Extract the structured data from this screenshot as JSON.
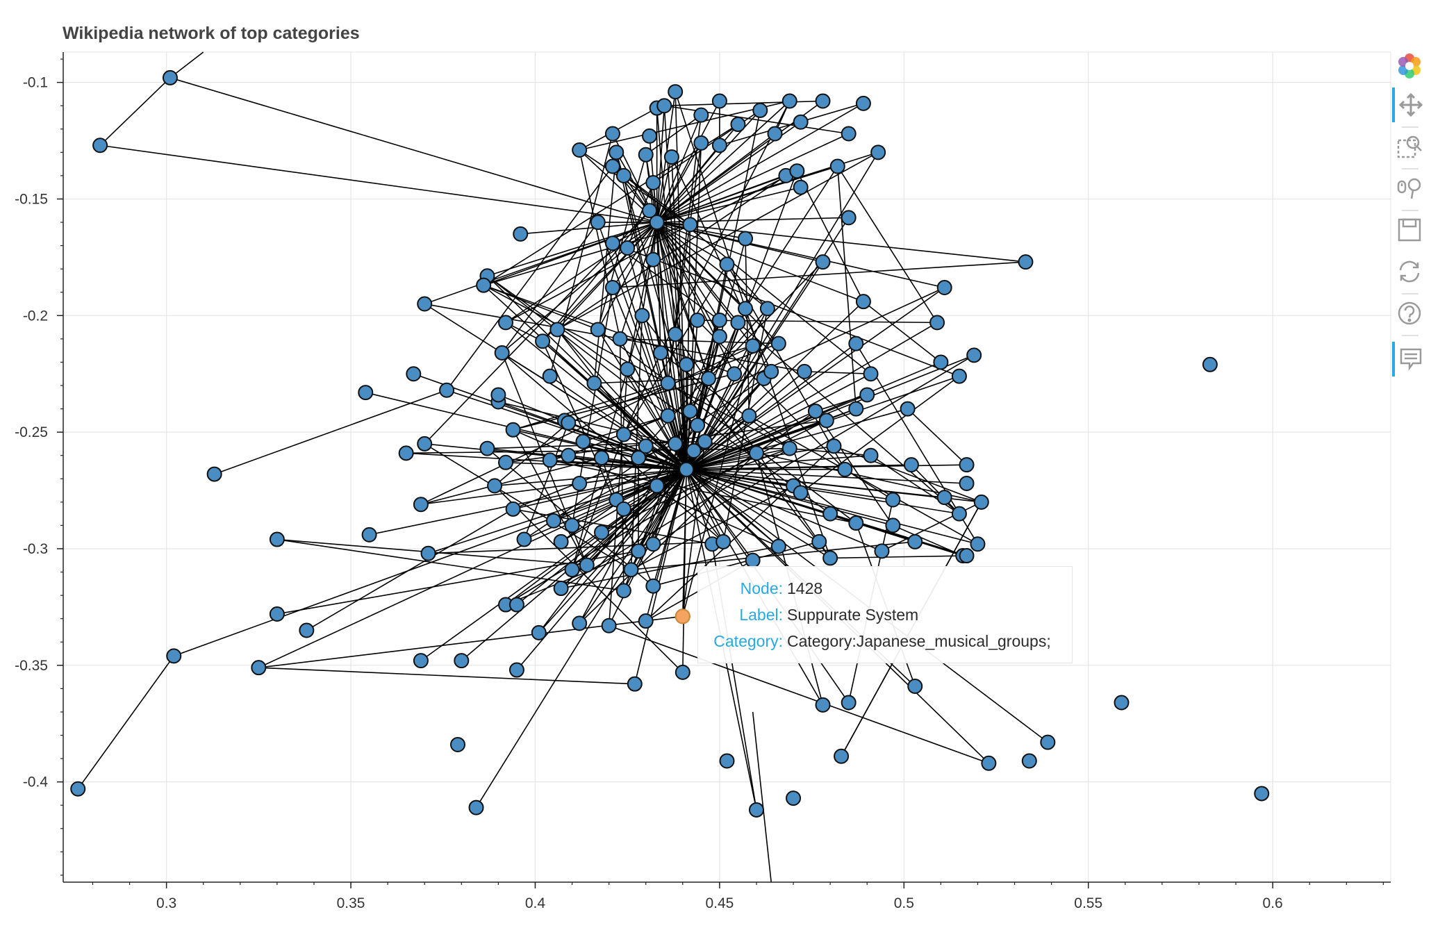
{
  "chart_data": {
    "type": "scatter",
    "title": "Wikipedia network of top categories",
    "xlim": [
      0.272,
      0.632
    ],
    "ylim": [
      -0.443,
      -0.087
    ],
    "x_ticks": [
      0.3,
      0.35,
      0.4,
      0.45,
      0.5,
      0.55,
      0.6
    ],
    "x_tick_labels": [
      "0.3",
      "0.35",
      "0.4",
      "0.45",
      "0.5",
      "0.55",
      "0.6"
    ],
    "y_ticks": [
      -0.1,
      -0.15,
      -0.2,
      -0.25,
      -0.3,
      -0.35,
      -0.4
    ],
    "y_tick_labels": [
      "-0.1",
      "-0.15",
      "-0.2",
      "-0.25",
      "-0.3",
      "-0.35",
      "-0.4"
    ],
    "grid": true,
    "node_color": "#4a8dc3",
    "highlight_color": "#f4a460",
    "edge_color": "#000000",
    "hubs": [
      [
        0.441,
        -0.266
      ],
      [
        0.433,
        -0.16
      ]
    ],
    "nodes": [
      [
        0.301,
        -0.098
      ],
      [
        0.282,
        -0.127
      ],
      [
        0.276,
        -0.403
      ],
      [
        0.302,
        -0.346
      ],
      [
        0.313,
        -0.268
      ],
      [
        0.33,
        -0.296
      ],
      [
        0.33,
        -0.328
      ],
      [
        0.338,
        -0.335
      ],
      [
        0.325,
        -0.351
      ],
      [
        0.354,
        -0.233
      ],
      [
        0.355,
        -0.294
      ],
      [
        0.369,
        -0.281
      ],
      [
        0.369,
        -0.348
      ],
      [
        0.371,
        -0.302
      ],
      [
        0.367,
        -0.225
      ],
      [
        0.365,
        -0.259
      ],
      [
        0.37,
        -0.255
      ],
      [
        0.37,
        -0.195
      ],
      [
        0.376,
        -0.232
      ],
      [
        0.38,
        -0.348
      ],
      [
        0.379,
        -0.384
      ],
      [
        0.384,
        -0.411
      ],
      [
        0.387,
        -0.183
      ],
      [
        0.386,
        -0.187
      ],
      [
        0.387,
        -0.257
      ],
      [
        0.389,
        -0.273
      ],
      [
        0.391,
        -0.216
      ],
      [
        0.392,
        -0.203
      ],
      [
        0.392,
        -0.263
      ],
      [
        0.392,
        -0.324
      ],
      [
        0.394,
        -0.249
      ],
      [
        0.394,
        -0.283
      ],
      [
        0.395,
        -0.324
      ],
      [
        0.395,
        -0.352
      ],
      [
        0.396,
        -0.165
      ],
      [
        0.397,
        -0.296
      ],
      [
        0.39,
        -0.237
      ],
      [
        0.39,
        -0.234
      ],
      [
        0.401,
        -0.336
      ],
      [
        0.402,
        -0.211
      ],
      [
        0.404,
        -0.226
      ],
      [
        0.404,
        -0.262
      ],
      [
        0.406,
        -0.206
      ],
      [
        0.405,
        -0.288
      ],
      [
        0.407,
        -0.297
      ],
      [
        0.407,
        -0.317
      ],
      [
        0.408,
        -0.245
      ],
      [
        0.409,
        -0.246
      ],
      [
        0.409,
        -0.26
      ],
      [
        0.41,
        -0.29
      ],
      [
        0.41,
        -0.309
      ],
      [
        0.412,
        -0.332
      ],
      [
        0.412,
        -0.272
      ],
      [
        0.412,
        -0.129
      ],
      [
        0.413,
        -0.254
      ],
      [
        0.414,
        -0.307
      ],
      [
        0.416,
        -0.229
      ],
      [
        0.417,
        -0.16
      ],
      [
        0.417,
        -0.206
      ],
      [
        0.418,
        -0.293
      ],
      [
        0.418,
        -0.261
      ],
      [
        0.42,
        -0.333
      ],
      [
        0.421,
        -0.136
      ],
      [
        0.421,
        -0.122
      ],
      [
        0.421,
        -0.169
      ],
      [
        0.421,
        -0.188
      ],
      [
        0.422,
        -0.279
      ],
      [
        0.422,
        -0.13
      ],
      [
        0.423,
        -0.21
      ],
      [
        0.424,
        -0.14
      ],
      [
        0.424,
        -0.251
      ],
      [
        0.424,
        -0.283
      ],
      [
        0.424,
        -0.318
      ],
      [
        0.425,
        -0.171
      ],
      [
        0.425,
        -0.223
      ],
      [
        0.426,
        -0.309
      ],
      [
        0.427,
        -0.358
      ],
      [
        0.428,
        -0.261
      ],
      [
        0.428,
        -0.301
      ],
      [
        0.429,
        -0.2
      ],
      [
        0.43,
        -0.131
      ],
      [
        0.43,
        -0.331
      ],
      [
        0.43,
        -0.256
      ],
      [
        0.431,
        -0.123
      ],
      [
        0.431,
        -0.155
      ],
      [
        0.432,
        -0.143
      ],
      [
        0.432,
        -0.176
      ],
      [
        0.432,
        -0.298
      ],
      [
        0.432,
        -0.316
      ],
      [
        0.433,
        -0.111
      ],
      [
        0.433,
        -0.273
      ],
      [
        0.434,
        -0.216
      ],
      [
        0.435,
        -0.11
      ],
      [
        0.436,
        -0.229
      ],
      [
        0.436,
        -0.243
      ],
      [
        0.437,
        -0.132
      ],
      [
        0.438,
        -0.104
      ],
      [
        0.438,
        -0.255
      ],
      [
        0.438,
        -0.208
      ],
      [
        0.44,
        -0.329
      ],
      [
        0.44,
        -0.353
      ],
      [
        0.441,
        -0.221
      ],
      [
        0.442,
        -0.161
      ],
      [
        0.442,
        -0.241
      ],
      [
        0.443,
        -0.258
      ],
      [
        0.444,
        -0.202
      ],
      [
        0.444,
        -0.247
      ],
      [
        0.445,
        -0.114
      ],
      [
        0.445,
        -0.126
      ],
      [
        0.446,
        -0.254
      ],
      [
        0.447,
        -0.227
      ],
      [
        0.448,
        -0.298
      ],
      [
        0.45,
        -0.202
      ],
      [
        0.45,
        -0.209
      ],
      [
        0.45,
        -0.108
      ],
      [
        0.45,
        -0.127
      ],
      [
        0.451,
        -0.297
      ],
      [
        0.452,
        -0.178
      ],
      [
        0.452,
        -0.391
      ],
      [
        0.454,
        -0.225
      ],
      [
        0.455,
        -0.118
      ],
      [
        0.455,
        -0.203
      ],
      [
        0.457,
        -0.167
      ],
      [
        0.457,
        -0.197
      ],
      [
        0.458,
        -0.243
      ],
      [
        0.459,
        -0.213
      ],
      [
        0.459,
        -0.305
      ],
      [
        0.46,
        -0.259
      ],
      [
        0.46,
        -0.412
      ],
      [
        0.461,
        -0.112
      ],
      [
        0.462,
        -0.227
      ],
      [
        0.463,
        -0.197
      ],
      [
        0.464,
        -0.224
      ],
      [
        0.465,
        -0.122
      ],
      [
        0.466,
        -0.212
      ],
      [
        0.466,
        -0.299
      ],
      [
        0.468,
        -0.14
      ],
      [
        0.469,
        -0.257
      ],
      [
        0.469,
        -0.108
      ],
      [
        0.47,
        -0.273
      ],
      [
        0.47,
        -0.407
      ],
      [
        0.471,
        -0.138
      ],
      [
        0.472,
        -0.117
      ],
      [
        0.472,
        -0.276
      ],
      [
        0.472,
        -0.145
      ],
      [
        0.473,
        -0.224
      ],
      [
        0.476,
        -0.241
      ],
      [
        0.477,
        -0.297
      ],
      [
        0.478,
        -0.367
      ],
      [
        0.478,
        -0.177
      ],
      [
        0.478,
        -0.108
      ],
      [
        0.479,
        -0.245
      ],
      [
        0.48,
        -0.285
      ],
      [
        0.48,
        -0.304
      ],
      [
        0.481,
        -0.256
      ],
      [
        0.482,
        -0.136
      ],
      [
        0.483,
        -0.389
      ],
      [
        0.484,
        -0.266
      ],
      [
        0.485,
        -0.122
      ],
      [
        0.485,
        -0.158
      ],
      [
        0.485,
        -0.366
      ],
      [
        0.487,
        -0.24
      ],
      [
        0.487,
        -0.289
      ],
      [
        0.487,
        -0.212
      ],
      [
        0.489,
        -0.109
      ],
      [
        0.489,
        -0.194
      ],
      [
        0.49,
        -0.234
      ],
      [
        0.491,
        -0.26
      ],
      [
        0.491,
        -0.225
      ],
      [
        0.493,
        -0.13
      ],
      [
        0.494,
        -0.301
      ],
      [
        0.497,
        -0.279
      ],
      [
        0.497,
        -0.29
      ],
      [
        0.501,
        -0.24
      ],
      [
        0.502,
        -0.264
      ],
      [
        0.503,
        -0.297
      ],
      [
        0.503,
        -0.359
      ],
      [
        0.509,
        -0.203
      ],
      [
        0.51,
        -0.22
      ],
      [
        0.511,
        -0.188
      ],
      [
        0.511,
        -0.278
      ],
      [
        0.515,
        -0.226
      ],
      [
        0.515,
        -0.285
      ],
      [
        0.516,
        -0.303
      ],
      [
        0.517,
        -0.303
      ],
      [
        0.517,
        -0.264
      ],
      [
        0.517,
        -0.272
      ],
      [
        0.519,
        -0.217
      ],
      [
        0.52,
        -0.298
      ],
      [
        0.521,
        -0.28
      ],
      [
        0.523,
        -0.392
      ],
      [
        0.533,
        -0.177
      ],
      [
        0.534,
        -0.391
      ],
      [
        0.539,
        -0.383
      ],
      [
        0.559,
        -0.366
      ],
      [
        0.583,
        -0.221
      ],
      [
        0.597,
        -0.405
      ]
    ],
    "highlight_node": [
      0.44,
      -0.329
    ],
    "tooltip": {
      "node_key": "Node:",
      "node_value": "1428",
      "label_key": "Label:",
      "label_value": "Suppurate System",
      "category_key": "Category:",
      "category_value": "Category:Japanese_musical_groups;"
    }
  },
  "toolbar": {
    "tools": [
      "bokeh-logo-icon",
      "pan-icon",
      "box-zoom-icon",
      "wheel-zoom-icon",
      "save-icon",
      "reset-icon",
      "help-icon",
      "hover-icon"
    ]
  }
}
